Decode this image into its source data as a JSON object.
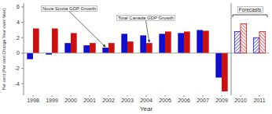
{
  "chart_data": {
    "type": "bar",
    "xlabel": "Year",
    "ylabel": "Per cent (Per cent Change Year-over-Year)",
    "categories": [
      "1998",
      "1999",
      "2000",
      "2001",
      "2002",
      "2003",
      "2004",
      "2005",
      "2006",
      "2007",
      "2009",
      "2010",
      "2011"
    ],
    "series": [
      {
        "name": "Nova Scotia GDP Growth",
        "color": "#1010cc",
        "values": [
          -0.8,
          -0.2,
          1.3,
          1.0,
          0.7,
          2.5,
          2.3,
          2.5,
          2.6,
          3.0,
          -3.2,
          2.8,
          2.0
        ]
      },
      {
        "name": "Total Canada GDP Growth",
        "color": "#cc1010",
        "values": [
          3.2,
          3.2,
          2.6,
          1.3,
          1.3,
          1.5,
          1.3,
          2.8,
          2.8,
          2.9,
          -5.0,
          3.8,
          2.8
        ]
      }
    ],
    "forecast": [
      false,
      false,
      false,
      false,
      false,
      false,
      false,
      false,
      false,
      false,
      false,
      true,
      true
    ],
    "annotations": [
      {
        "text": "Forecasts"
      }
    ],
    "ylim": [
      -5.5,
      6.5
    ],
    "yticks": [
      -4,
      -2,
      0,
      2,
      4,
      6
    ]
  }
}
